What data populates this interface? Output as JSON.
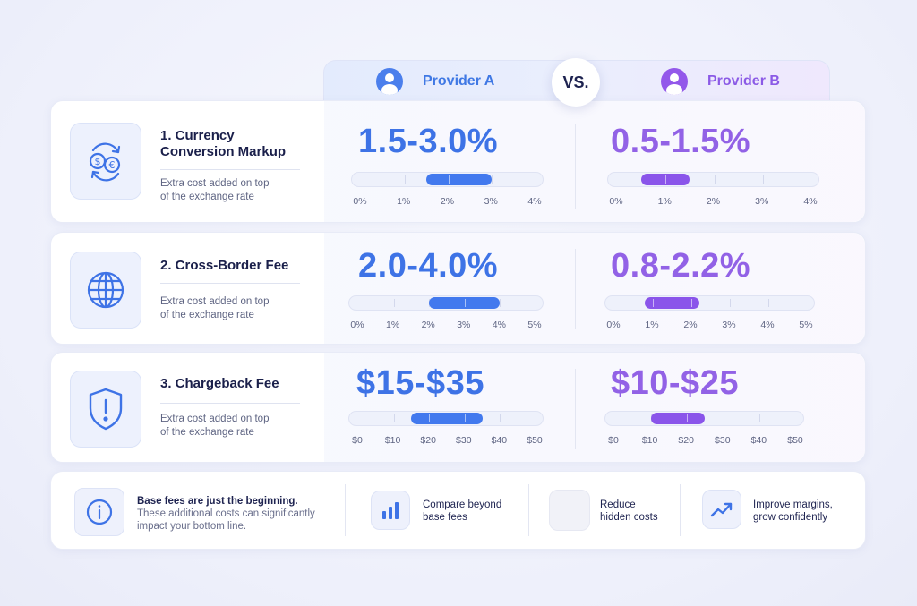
{
  "header": {
    "provider_a": "Provider A",
    "provider_b": "Provider B",
    "vs": "VS."
  },
  "colors": {
    "provider_a": "#4279ee",
    "provider_b": "#8a55ea"
  },
  "rows": [
    {
      "icon": "currency-exchange-icon",
      "title_line1": "1. Currency",
      "title_line2": "Conversion Markup",
      "desc_line1": "Extra cost added on top",
      "desc_line2": "of the exchange rate",
      "a": {
        "label": "1.5-3.0%",
        "range": [
          1.5,
          3.0
        ],
        "scale": [
          0,
          4
        ],
        "ticks": [
          "0%",
          "1%",
          "2%",
          "3%",
          "4%"
        ]
      },
      "b": {
        "label": "0.5-1.5%",
        "range": [
          0.5,
          1.5
        ],
        "scale": [
          0,
          4
        ],
        "ticks": [
          "0%",
          "1%",
          "2%",
          "3%",
          "4%"
        ]
      }
    },
    {
      "icon": "globe-icon",
      "title_line1": "2. Cross-Border Fee",
      "title_line2": "",
      "desc_line1": "Extra cost added on top",
      "desc_line2": "of the exchange rate",
      "a": {
        "label": "2.0-4.0%",
        "range": [
          2.0,
          4.0
        ],
        "scale": [
          0,
          5
        ],
        "ticks": [
          "0%",
          "1%",
          "2%",
          "3%",
          "4%",
          "5%"
        ]
      },
      "b": {
        "label": "0.8-2.2%",
        "range": [
          0.8,
          2.2
        ],
        "scale": [
          0,
          5
        ],
        "ticks": [
          "0%",
          "1%",
          "2%",
          "3%",
          "4%",
          "5%"
        ]
      }
    },
    {
      "icon": "shield-alert-icon",
      "title_line1": "3. Chargeback Fee",
      "title_line2": "",
      "desc_line1": "Extra cost added on top",
      "desc_line2": "of the exchange rate",
      "a": {
        "label": "$15-$35",
        "range": [
          15,
          35
        ],
        "scale": [
          0,
          50
        ],
        "ticks": [
          "$0",
          "$10",
          "$20",
          "$30",
          "$40",
          "$50"
        ]
      },
      "b": {
        "label": "$10-$25",
        "range": [
          10,
          25
        ],
        "scale": [
          0,
          50
        ],
        "ticks": [
          "$0",
          "$10",
          "$20",
          "$30",
          "$40",
          "$50"
        ]
      }
    }
  ],
  "footer": {
    "info_title": "Base fees are just the beginning.",
    "info_line1": "These additional costs can significantly",
    "info_line2": "impact your bottom line.",
    "items": [
      {
        "icon": "bar-chart-icon",
        "line1": "Compare beyond",
        "line2": "base fees"
      },
      {
        "icon": "",
        "line1": "Reduce",
        "line2": "hidden costs"
      },
      {
        "icon": "trend-up-icon",
        "line1": "Improve margins,",
        "line2": "grow confidently"
      }
    ]
  }
}
